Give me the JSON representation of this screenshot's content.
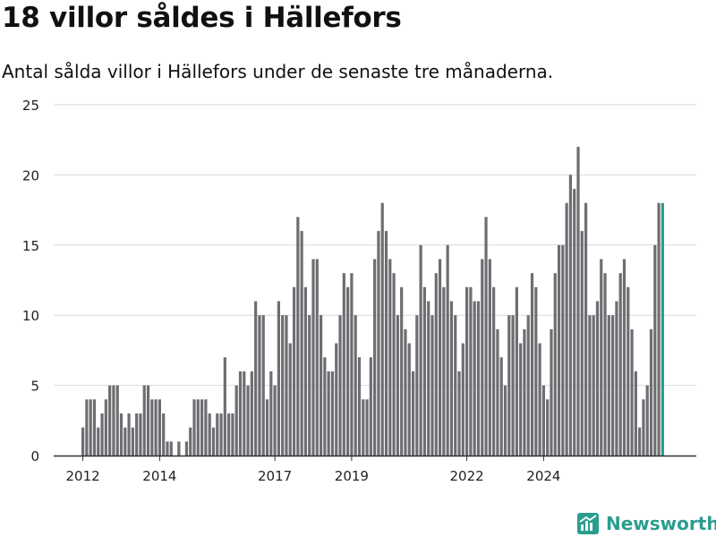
{
  "title": "18 villor såldes i Hällefors",
  "subtitle": "Antal sålda villor i Hällefors under de senaste tre månaderna.",
  "brand": {
    "name": "Newsworthy",
    "icon": "newsworthy-logo-icon",
    "color": "#2a9d8f"
  },
  "colors": {
    "bar": "#6d6d72",
    "highlight": "#2a9d8f",
    "grid": "#d9d9d9",
    "axis": "#333333"
  },
  "chart_data": {
    "type": "bar",
    "title": "18 villor såldes i Hällefors",
    "subtitle": "Antal sålda villor i Hällefors under de senaste tre månaderna.",
    "xlabel": "",
    "ylabel": "",
    "ylim": [
      0,
      25
    ],
    "yticks": [
      0,
      5,
      10,
      15,
      20,
      25
    ],
    "xticks": [
      "2012",
      "2014",
      "2017",
      "2019",
      "2022",
      "2024"
    ],
    "xtick_positions": [
      0,
      20,
      50,
      70,
      100,
      120
    ],
    "grid": true,
    "values": [
      2,
      4,
      4,
      4,
      2,
      3,
      4,
      5,
      5,
      5,
      3,
      2,
      3,
      2,
      3,
      3,
      5,
      5,
      4,
      4,
      4,
      3,
      1,
      1,
      0,
      1,
      0,
      1,
      2,
      4,
      4,
      4,
      4,
      3,
      2,
      3,
      3,
      7,
      3,
      3,
      5,
      6,
      6,
      5,
      6,
      11,
      10,
      10,
      4,
      6,
      5,
      11,
      10,
      10,
      8,
      12,
      17,
      16,
      12,
      10,
      14,
      14,
      10,
      7,
      6,
      6,
      8,
      10,
      13,
      12,
      13,
      10,
      7,
      4,
      4,
      7,
      14,
      16,
      18,
      16,
      14,
      13,
      10,
      12,
      9,
      8,
      6,
      10,
      15,
      12,
      11,
      10,
      13,
      14,
      12,
      15,
      11,
      10,
      6,
      8,
      12,
      12,
      11,
      11,
      14,
      17,
      14,
      12,
      9,
      7,
      5,
      10,
      10,
      12,
      8,
      9,
      10,
      13,
      12,
      8,
      5,
      4,
      9,
      13,
      15,
      15,
      18,
      20,
      19,
      22,
      16,
      18,
      10,
      10,
      11,
      14,
      13,
      10,
      10,
      11,
      13,
      14,
      12,
      9,
      6,
      2,
      4,
      5,
      9,
      15,
      18,
      18
    ],
    "highlight_last": true,
    "data_labels": [
      {
        "index": 152,
        "text": "18"
      }
    ]
  }
}
